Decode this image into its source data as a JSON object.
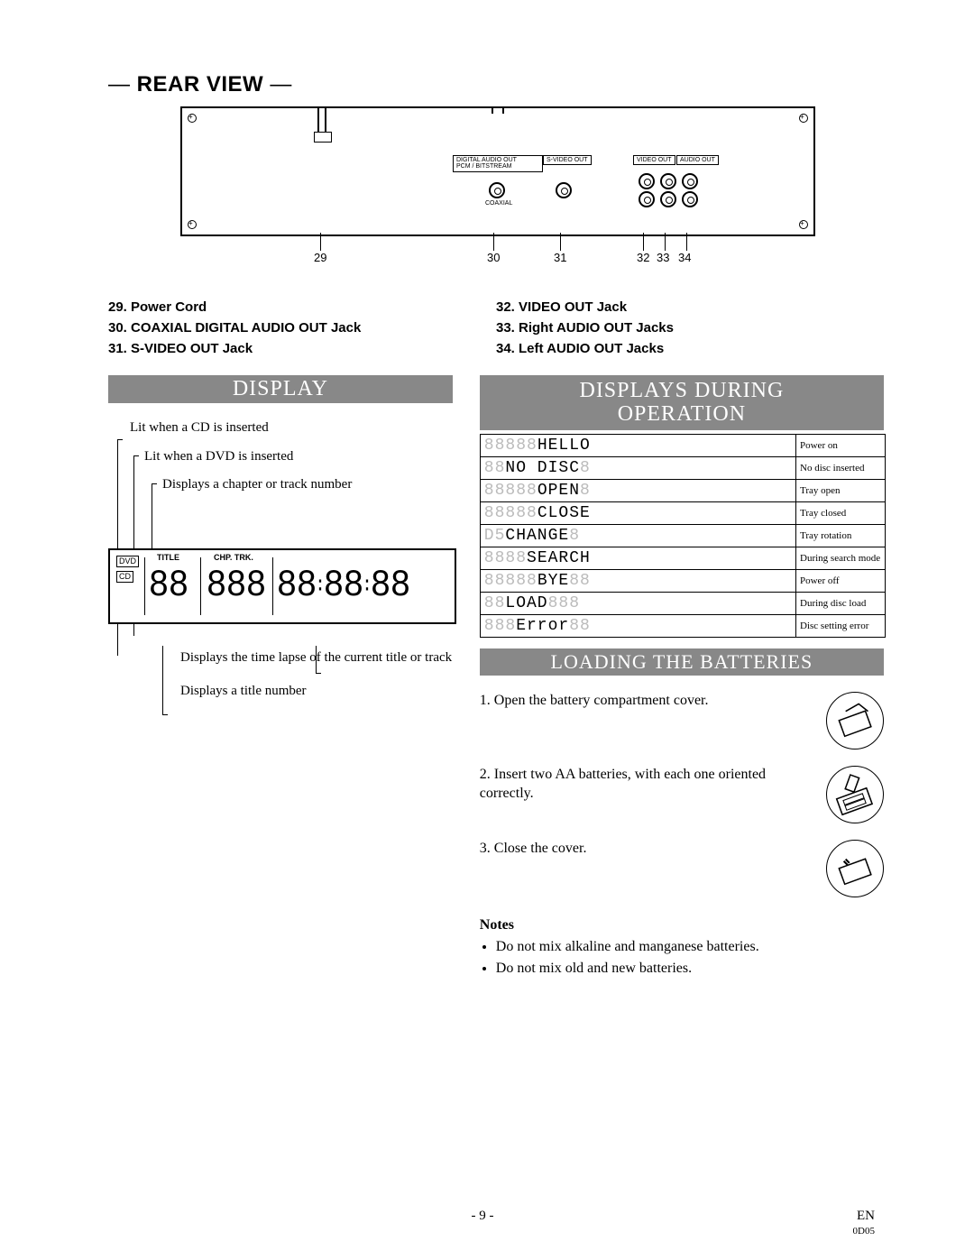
{
  "rear_view": {
    "title": "REAR VIEW",
    "panel_labels": {
      "digital_audio": "DIGITAL AUDIO OUT\nPCM / BITSTREAM",
      "svideo": "S-VIDEO OUT",
      "video": "VIDEO OUT",
      "audio": "AUDIO OUT",
      "coaxial": "COAXIAL"
    },
    "leader_numbers": [
      "29",
      "30",
      "31",
      "32",
      "33",
      "34"
    ],
    "parts_left": [
      "29. Power Cord",
      "30. COAXIAL DIGITAL AUDIO OUT Jack",
      "31. S-VIDEO OUT Jack"
    ],
    "parts_right": [
      "32. VIDEO OUT Jack",
      "33. Right AUDIO OUT Jacks",
      "34. Left AUDIO OUT Jacks"
    ]
  },
  "display_section": {
    "banner": "DISPLAY",
    "callouts": [
      "Lit when a CD is inserted",
      "Lit when a DVD is inserted",
      "Displays a chapter or track number"
    ],
    "panel_labels": {
      "dvd": "DVD",
      "cd": "CD",
      "title": "TITLE",
      "chp_trk": "CHP. TRK."
    },
    "below_callouts": [
      "Displays the time lapse of the current title or track",
      "Displays a title number"
    ]
  },
  "ops_section": {
    "banner": "DISPLAYS DURING OPERATION",
    "rows": [
      {
        "code_dim": "88888",
        "code": "HELLO",
        "pad": "",
        "desc": "Power on"
      },
      {
        "code_dim": "88",
        "code": "NO DISC",
        "pad": "8",
        "desc": "No disc inserted"
      },
      {
        "code_dim": "88888",
        "code": "OPEN",
        "pad": "8",
        "desc": "Tray open"
      },
      {
        "code_dim": "88888",
        "code": "CLOSE",
        "pad": "",
        "desc": "Tray closed"
      },
      {
        "code_dim": "D5",
        "code": "CHANGE",
        "pad": "8",
        "desc": "Tray rotation"
      },
      {
        "code_dim": "8888",
        "code": "SEARCH",
        "pad": "",
        "desc": "During search mode"
      },
      {
        "code_dim": "88888",
        "code": "BYE",
        "pad": "88",
        "desc": "Power off"
      },
      {
        "code_dim": "88",
        "code": "LOAD",
        "pad": "888",
        "desc": "During disc load"
      },
      {
        "code_dim": "888",
        "code": "Error",
        "pad": "88",
        "desc": "Disc setting error"
      }
    ]
  },
  "batteries_section": {
    "banner": "LOADING THE BATTERIES",
    "steps": [
      "1. Open the battery compartment cover.",
      "2. Insert two AA batteries, with each one oriented correctly.",
      "3. Close the cover."
    ],
    "notes_title": "Notes",
    "notes": [
      "Do not mix alkaline and manganese batteries.",
      "Do not mix old and new batteries."
    ]
  },
  "colors": {
    "banner_bg": "#888888",
    "banner_fg": "#ffffff",
    "dim_text": "#bbbbbb"
  },
  "footer": {
    "page": "- 9 -",
    "lang": "EN",
    "code": "0D05"
  }
}
